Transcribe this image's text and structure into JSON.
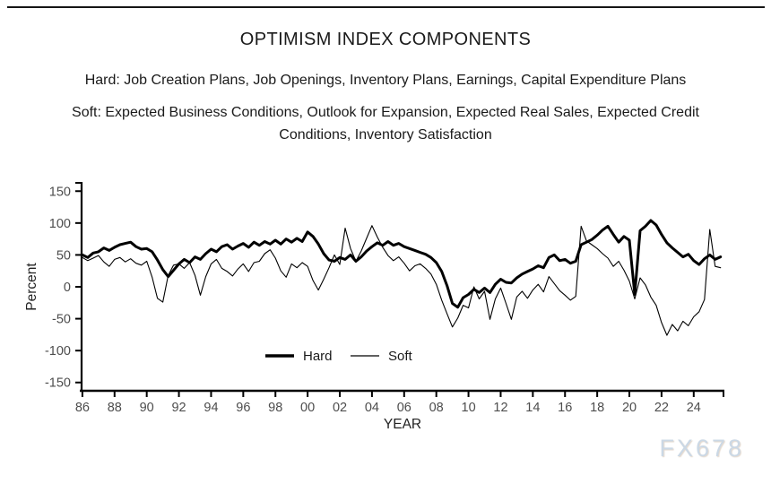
{
  "page": {
    "watermark": "FX678"
  },
  "header": {
    "title": "OPTIMISM INDEX COMPONENTS",
    "hard_prefix": "Hard:",
    "hard_items": "Job Creation Plans, Job Openings, Inventory Plans, Earnings, Capital Expenditure Plans",
    "soft_prefix": "Soft:",
    "soft_items": "Expected Business Conditions, Outlook for Expansion, Expected Real Sales, Expected Credit Conditions, Inventory Satisfaction"
  },
  "chart_data": {
    "type": "line",
    "title": "",
    "xlabel": "YEAR",
    "ylabel": "Percent",
    "grid": false,
    "legend_position": "inside-bottom-center",
    "xlim": [
      1985.95,
      2025.85
    ],
    "ylim": [
      -163,
      163
    ],
    "y_ticks": [
      -150,
      -100,
      -50,
      0,
      50,
      100,
      150
    ],
    "x_ticks": [
      {
        "v": 1986,
        "label": "86"
      },
      {
        "v": 1988,
        "label": "88"
      },
      {
        "v": 1990,
        "label": "90"
      },
      {
        "v": 1992,
        "label": "92"
      },
      {
        "v": 1994,
        "label": "94"
      },
      {
        "v": 1996,
        "label": "96"
      },
      {
        "v": 1998,
        "label": "98"
      },
      {
        "v": 2000,
        "label": "00"
      },
      {
        "v": 2002,
        "label": "02"
      },
      {
        "v": 2004,
        "label": "04"
      },
      {
        "v": 2006,
        "label": "06"
      },
      {
        "v": 2008,
        "label": "08"
      },
      {
        "v": 2010,
        "label": "10"
      },
      {
        "v": 2012,
        "label": "12"
      },
      {
        "v": 2014,
        "label": "14"
      },
      {
        "v": 2016,
        "label": "16"
      },
      {
        "v": 2018,
        "label": "18"
      },
      {
        "v": 2020,
        "label": "20"
      },
      {
        "v": 2022,
        "label": "22"
      },
      {
        "v": 2024,
        "label": "24"
      }
    ],
    "x_start": 1986.0,
    "x_step": 0.33333,
    "series": [
      {
        "name": "Hard",
        "style": "thick",
        "color": "#000000",
        "values": [
          50,
          46,
          53,
          55,
          61,
          57,
          62,
          66,
          68,
          70,
          63,
          59,
          60,
          55,
          42,
          27,
          16,
          26,
          36,
          43,
          38,
          47,
          43,
          52,
          59,
          55,
          63,
          66,
          59,
          64,
          68,
          62,
          70,
          65,
          71,
          67,
          73,
          67,
          75,
          70,
          76,
          71,
          86,
          79,
          67,
          52,
          42,
          40,
          46,
          43,
          50,
          40,
          47,
          56,
          63,
          69,
          65,
          71,
          65,
          68,
          63,
          60,
          57,
          54,
          51,
          46,
          38,
          24,
          2,
          -26,
          -32,
          -17,
          -12,
          -4,
          -9,
          -2,
          -9,
          4,
          12,
          7,
          6,
          14,
          20,
          24,
          28,
          33,
          30,
          46,
          50,
          41,
          43,
          37,
          40,
          66,
          70,
          74,
          81,
          89,
          95,
          82,
          70,
          79,
          73,
          -12,
          88,
          95,
          104,
          97,
          82,
          69,
          61,
          54,
          47,
          51,
          41,
          35,
          44,
          50,
          43,
          47
        ]
      },
      {
        "name": "Soft",
        "style": "thin",
        "color": "#000000",
        "values": [
          46,
          41,
          45,
          49,
          39,
          32,
          43,
          46,
          39,
          44,
          37,
          34,
          40,
          15,
          -18,
          -24,
          18,
          34,
          36,
          29,
          38,
          18,
          -13,
          16,
          36,
          43,
          29,
          24,
          17,
          28,
          36,
          24,
          38,
          40,
          52,
          58,
          45,
          25,
          15,
          36,
          30,
          38,
          32,
          10,
          -5,
          12,
          30,
          50,
          35,
          92,
          60,
          40,
          56,
          76,
          96,
          78,
          62,
          49,
          41,
          47,
          37,
          25,
          33,
          36,
          29,
          20,
          4,
          -21,
          -42,
          -63,
          -49,
          -29,
          -33,
          0,
          -19,
          -7,
          -51,
          -19,
          -2,
          -26,
          -51,
          -16,
          -7,
          -18,
          -5,
          4,
          -8,
          16,
          5,
          -6,
          -13,
          -21,
          -15,
          95,
          72,
          66,
          60,
          52,
          45,
          32,
          40,
          26,
          9,
          -19,
          14,
          3,
          -16,
          -29,
          -56,
          -76,
          -59,
          -69,
          -54,
          -61,
          -47,
          -39,
          -20,
          90,
          32,
          30
        ]
      }
    ],
    "colors": {
      "axis": "#000000",
      "tick_label": "#4d4d4d",
      "axis_label": "#222222"
    }
  }
}
